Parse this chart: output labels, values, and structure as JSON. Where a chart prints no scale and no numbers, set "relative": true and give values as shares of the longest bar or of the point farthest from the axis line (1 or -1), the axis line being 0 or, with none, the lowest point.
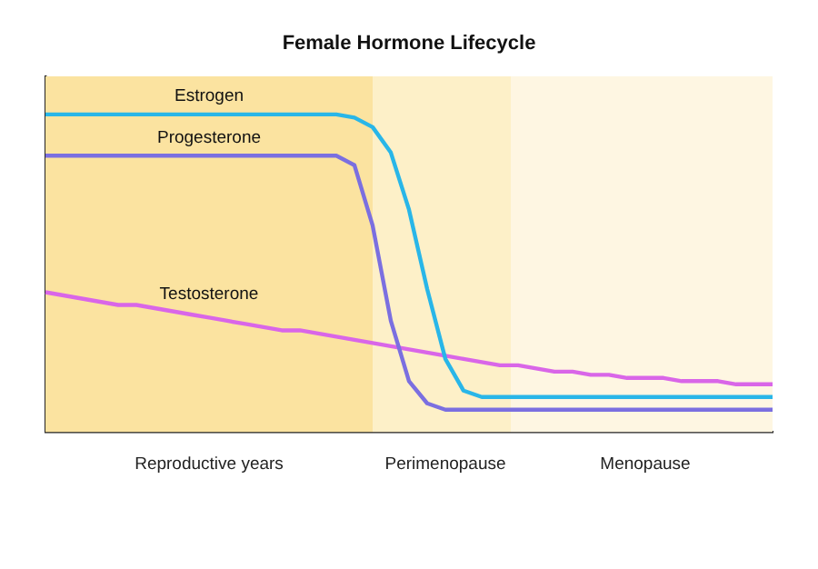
{
  "chart_data": {
    "type": "line",
    "title": "Female Hormone Lifecycle",
    "relative": true,
    "tick_labels": "x",
    "grid": false,
    "legend": false,
    "marker": "none",
    "categories": [
      null,
      null,
      null,
      null,
      null,
      null,
      null,
      null,
      null,
      "Reproductive years",
      null,
      null,
      null,
      null,
      null,
      null,
      null,
      null,
      null,
      null,
      null,
      null,
      "Perimenopause",
      null,
      null,
      null,
      null,
      null,
      null,
      null,
      null,
      null,
      null,
      "Menopause",
      null,
      null,
      null,
      null,
      null,
      null,
      null
    ],
    "series": [
      {
        "name": "Estrogen",
        "color": "#29b6e8",
        "values": [
          1,
          1,
          1,
          1,
          1,
          1,
          1,
          1,
          1,
          1,
          1,
          1,
          1,
          1,
          1,
          1,
          1,
          0.99,
          0.96,
          0.88,
          0.7,
          0.45,
          0.23,
          0.13,
          0.11,
          0.11,
          0.11,
          0.11,
          0.11,
          0.11,
          0.11,
          0.11,
          0.11,
          0.11,
          0.11,
          0.11,
          0.11,
          0.11,
          0.11,
          0.11,
          0.11
        ]
      },
      {
        "name": "Progesterone",
        "color": "#7b6fe0",
        "values": [
          0.87,
          0.87,
          0.87,
          0.87,
          0.87,
          0.87,
          0.87,
          0.87,
          0.87,
          0.87,
          0.87,
          0.87,
          0.87,
          0.87,
          0.87,
          0.87,
          0.87,
          0.84,
          0.65,
          0.35,
          0.16,
          0.09,
          0.07,
          0.07,
          0.07,
          0.07,
          0.07,
          0.07,
          0.07,
          0.07,
          0.07,
          0.07,
          0.07,
          0.07,
          0.07,
          0.07,
          0.07,
          0.07,
          0.07,
          0.07,
          0.07
        ]
      },
      {
        "name": "Testosterone",
        "color": "#d966e8",
        "values": [
          0.44,
          0.43,
          0.42,
          0.41,
          0.4,
          0.4,
          0.39,
          0.38,
          0.37,
          0.36,
          0.35,
          0.34,
          0.33,
          0.32,
          0.32,
          0.31,
          0.3,
          0.29,
          0.28,
          0.27,
          0.26,
          0.25,
          0.24,
          0.23,
          0.22,
          0.21,
          0.21,
          0.2,
          0.19,
          0.19,
          0.18,
          0.18,
          0.17,
          0.17,
          0.17,
          0.16,
          0.16,
          0.16,
          0.15,
          0.15,
          0.15
        ]
      }
    ]
  }
}
